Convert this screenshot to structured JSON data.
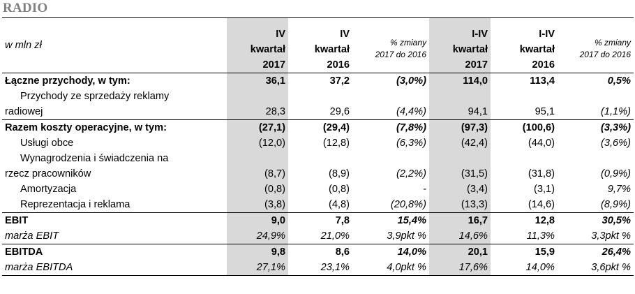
{
  "title": "RADIO",
  "header": {
    "unit": "w mln zł",
    "columns": [
      {
        "line1": "IV",
        "line2": "kwartał",
        "line3": "2017"
      },
      {
        "line1": "IV",
        "line2": "kwartał",
        "line3": "2016"
      },
      {
        "line1": "% zmiany",
        "line2": "2017 do 2016"
      },
      {
        "line1": "I-IV",
        "line2": "kwartał",
        "line3": "2017"
      },
      {
        "line1": "I-IV",
        "line2": "kwartał",
        "line3": "2016"
      },
      {
        "line1": "% zmiany",
        "line2": "2017 do 2016"
      }
    ]
  },
  "rows": [
    {
      "label": "Łączne przychody, w tym:",
      "values": [
        "36,1",
        "37,2",
        "(3,0%)",
        "114,0",
        "113,4",
        "0,5%"
      ]
    },
    {
      "label": "Przychody ze sprzedaży reklamy",
      "label2": "radiowej",
      "values": [
        "28,3",
        "29,6",
        "(4,4%)",
        "94,1",
        "95,1",
        "(1,1%)"
      ]
    },
    {
      "label": "Razem koszty operacyjne, w tym:",
      "values": [
        "(27,1)",
        "(29,4)",
        "(7,8%)",
        "(97,3)",
        "(100,6)",
        "(3,3%)"
      ]
    },
    {
      "label": "Usługi obce",
      "values": [
        "(12,0)",
        "(12,8)",
        "(6,3%)",
        "(42,4)",
        "(44,0)",
        "(3,6%)"
      ]
    },
    {
      "label": "Wynagrodzenia i świadczenia na",
      "label2": "rzecz pracowników",
      "values": [
        "(8,7)",
        "(8,9)",
        "(2,2%)",
        "(31,5)",
        "(31,8)",
        "(0,9%)"
      ]
    },
    {
      "label": "Amortyzacja",
      "values": [
        "(0,8)",
        "(0,8)",
        "-",
        "(3,4)",
        "(3,1)",
        "9,7%"
      ]
    },
    {
      "label": "Reprezentacja i reklama",
      "values": [
        "(3,8)",
        "(4,8)",
        "(20,8%)",
        "(13,3)",
        "(14,6)",
        "(8,9%)"
      ]
    },
    {
      "label": "EBIT",
      "values": [
        "9,0",
        "7,8",
        "15,4%",
        "16,7",
        "12,8",
        "30,5%"
      ]
    },
    {
      "label": "marża EBIT",
      "values": [
        "24,9%",
        "21,0%",
        "3,9pkt %",
        "14,6%",
        "11,3%",
        "3,3pkt %"
      ]
    },
    {
      "label": "EBITDA",
      "values": [
        "9,8",
        "8,6",
        "14,0%",
        "20,1",
        "15,9",
        "26,4%"
      ]
    },
    {
      "label": "marża EBITDA",
      "values": [
        "27,1%",
        "23,1%",
        "4,0pkt %",
        "17,6%",
        "14,0%",
        "3,6pkt %"
      ]
    }
  ]
}
